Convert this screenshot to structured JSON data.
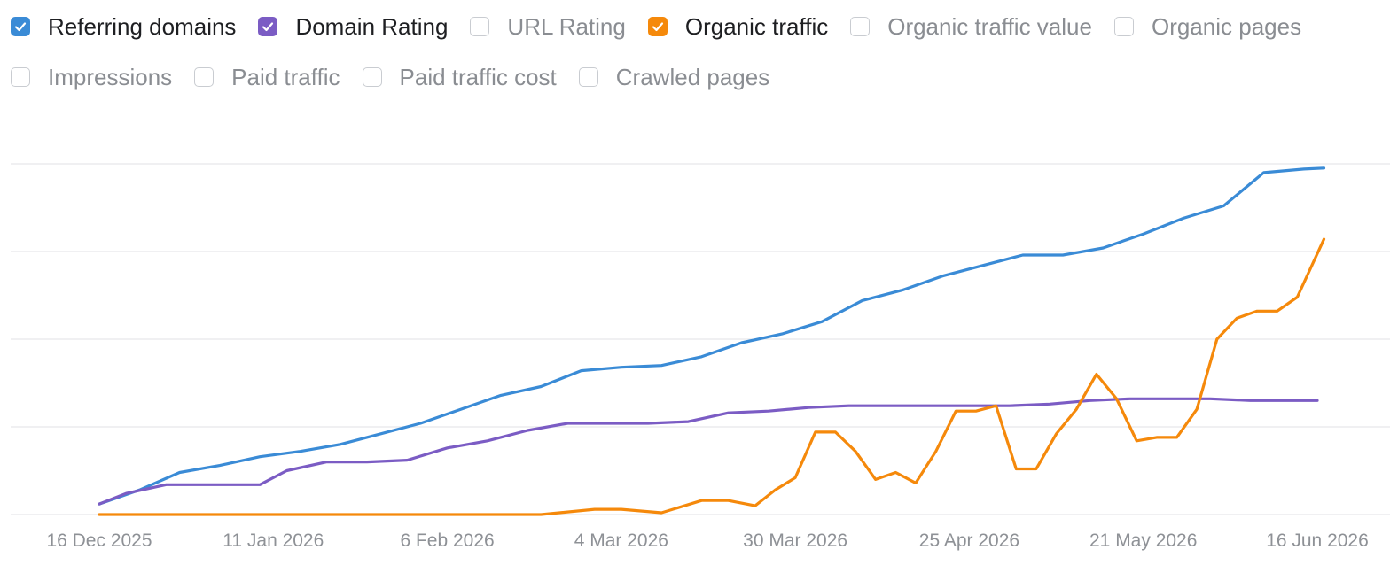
{
  "legend": {
    "row1": [
      {
        "label": "Referring domains",
        "checked": true,
        "color": "#3a8bd6"
      },
      {
        "label": "Domain Rating",
        "checked": true,
        "color": "#7b5cc4"
      },
      {
        "label": "URL Rating",
        "checked": false
      },
      {
        "label": "Organic traffic",
        "checked": true,
        "color": "#f5890b"
      },
      {
        "label": "Organic traffic value",
        "checked": false
      },
      {
        "label": "Organic pages",
        "checked": false
      }
    ],
    "row2": [
      {
        "label": "Impressions",
        "checked": false
      },
      {
        "label": "Paid traffic",
        "checked": false
      },
      {
        "label": "Paid traffic cost",
        "checked": false
      },
      {
        "label": "Crawled pages",
        "checked": false
      }
    ]
  },
  "chart_data": {
    "type": "line",
    "x_ticks": [
      "16 Dec 2025",
      "11 Jan 2026",
      "6 Feb 2026",
      "4 Mar 2026",
      "30 Mar 2026",
      "25 Apr 2026",
      "21 May 2026",
      "16 Jun 2026"
    ],
    "grid": true,
    "y_axis_labels": false,
    "ylim": [
      0,
      100
    ],
    "series": [
      {
        "name": "Referring domains",
        "color": "#3a8bd6",
        "x": [
          "2025-12-16",
          "2025-12-22",
          "2025-12-28",
          "2026-01-03",
          "2026-01-09",
          "2026-01-15",
          "2026-01-21",
          "2026-01-27",
          "2026-02-02",
          "2026-02-08",
          "2026-02-14",
          "2026-02-20",
          "2026-02-26",
          "2026-03-04",
          "2026-03-10",
          "2026-03-16",
          "2026-03-22",
          "2026-03-28",
          "2026-04-03",
          "2026-04-09",
          "2026-04-15",
          "2026-04-21",
          "2026-04-27",
          "2026-05-03",
          "2026-05-09",
          "2026-05-15",
          "2026-05-21",
          "2026-05-27",
          "2026-06-02",
          "2026-06-08",
          "2026-06-14",
          "2026-06-17"
        ],
        "values": [
          3,
          7,
          12,
          14,
          16.5,
          18,
          20,
          23,
          26,
          30,
          34,
          36.5,
          41,
          42,
          42.5,
          45,
          49,
          51.5,
          55,
          61,
          64,
          68,
          71,
          74,
          74,
          76,
          80,
          84.5,
          88,
          97.5,
          98.5,
          98.8
        ]
      },
      {
        "name": "Domain Rating",
        "color": "#7b5cc4",
        "x": [
          "2025-12-16",
          "2025-12-20",
          "2025-12-26",
          "2026-01-03",
          "2026-01-09",
          "2026-01-13",
          "2026-01-19",
          "2026-01-25",
          "2026-01-31",
          "2026-02-06",
          "2026-02-12",
          "2026-02-18",
          "2026-02-24",
          "2026-03-02",
          "2026-03-08",
          "2026-03-14",
          "2026-03-20",
          "2026-03-26",
          "2026-04-01",
          "2026-04-07",
          "2026-04-13",
          "2026-04-19",
          "2026-04-25",
          "2026-05-01",
          "2026-05-07",
          "2026-05-13",
          "2026-05-19",
          "2026-05-25",
          "2026-05-31",
          "2026-06-06",
          "2026-06-12",
          "2026-06-16"
        ],
        "values": [
          3,
          6,
          8.5,
          8.5,
          8.5,
          12.5,
          15,
          15,
          15.5,
          19,
          21,
          24,
          26,
          26,
          26,
          26.5,
          29,
          29.5,
          30.5,
          31,
          31,
          31,
          31,
          31,
          31.5,
          32.5,
          33,
          33,
          33,
          32.5,
          32.5,
          32.5
        ]
      },
      {
        "name": "Organic traffic",
        "color": "#f5890b",
        "x": [
          "2025-12-16",
          "2026-01-20",
          "2026-02-20",
          "2026-02-28",
          "2026-03-04",
          "2026-03-10",
          "2026-03-16",
          "2026-03-20",
          "2026-03-24",
          "2026-03-27",
          "2026-03-30",
          "2026-04-02",
          "2026-04-05",
          "2026-04-08",
          "2026-04-11",
          "2026-04-14",
          "2026-04-17",
          "2026-04-20",
          "2026-04-23",
          "2026-04-26",
          "2026-04-29",
          "2026-05-02",
          "2026-05-05",
          "2026-05-08",
          "2026-05-11",
          "2026-05-14",
          "2026-05-17",
          "2026-05-20",
          "2026-05-23",
          "2026-05-26",
          "2026-05-29",
          "2026-06-01",
          "2026-06-04",
          "2026-06-07",
          "2026-06-10",
          "2026-06-13",
          "2026-06-17"
        ],
        "values": [
          0,
          0,
          0,
          1.5,
          1.5,
          0.5,
          4,
          4,
          2.5,
          7,
          10.5,
          23.5,
          23.5,
          18,
          10,
          12,
          9,
          18,
          29.5,
          29.5,
          31,
          13,
          13,
          23,
          30,
          40,
          33,
          21,
          22,
          22,
          30,
          50,
          56,
          58,
          58,
          62,
          78.5
        ]
      }
    ]
  }
}
